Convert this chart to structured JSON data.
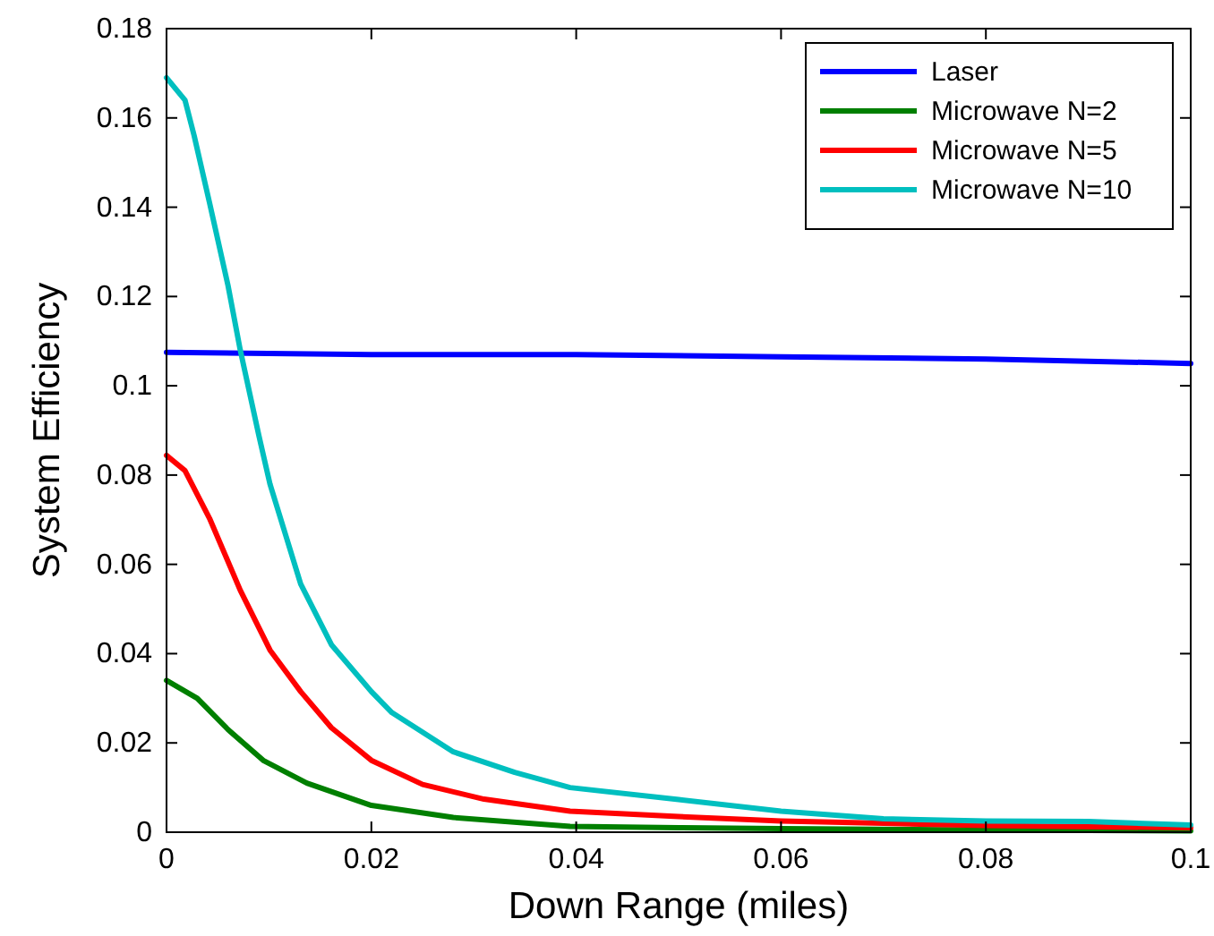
{
  "chart_data": {
    "type": "line",
    "xlabel": "Down Range (miles)",
    "ylabel": "System Efficiency",
    "xlim": [
      0,
      0.1
    ],
    "ylim": [
      0,
      0.18
    ],
    "xticks": [
      0,
      0.02,
      0.04,
      0.06,
      0.08,
      0.1
    ],
    "yticks": [
      0,
      0.02,
      0.04,
      0.06,
      0.08,
      0.1,
      0.12,
      0.14,
      0.16,
      0.18
    ],
    "grid": false,
    "legend": "top right",
    "marker": "none",
    "line_style": "solid",
    "series": [
      {
        "name": "Laser",
        "color": "#0000ff",
        "x": [
          0,
          0.02,
          0.04,
          0.06,
          0.08,
          0.1
        ],
        "values": [
          0.1075,
          0.107,
          0.107,
          0.1065,
          0.106,
          0.105
        ]
      },
      {
        "name": "Microwave N=2",
        "color": "#007f00",
        "x": [
          0,
          0.003,
          0.006,
          0.0095,
          0.0137,
          0.02,
          0.028,
          0.0394,
          0.05,
          0.06,
          0.08,
          0.1
        ],
        "values": [
          0.034,
          0.03,
          0.023,
          0.016,
          0.011,
          0.006,
          0.0033,
          0.0013,
          0.001,
          0.0008,
          0.0005,
          0.0003
        ]
      },
      {
        "name": "Microwave N=5",
        "color": "#ff0000",
        "x": [
          0,
          0.0018,
          0.0042,
          0.0072,
          0.0101,
          0.0131,
          0.0161,
          0.02,
          0.025,
          0.031,
          0.0394,
          0.05,
          0.06,
          0.07,
          0.08,
          0.1
        ],
        "values": [
          0.0844,
          0.081,
          0.0703,
          0.0542,
          0.0408,
          0.0315,
          0.0234,
          0.0161,
          0.0107,
          0.0074,
          0.0047,
          0.0035,
          0.0025,
          0.002,
          0.0015,
          0.001
        ]
      },
      {
        "name": "Microwave N=10",
        "color": "#00bfbf",
        "x": [
          0,
          0.0018,
          0.0027,
          0.0042,
          0.006,
          0.0072,
          0.009,
          0.0101,
          0.0131,
          0.0161,
          0.02,
          0.022,
          0.028,
          0.034,
          0.0394,
          0.05,
          0.06,
          0.07,
          0.08,
          0.09,
          0.1
        ],
        "values": [
          0.169,
          0.164,
          0.156,
          0.141,
          0.1225,
          0.108,
          0.089,
          0.078,
          0.0556,
          0.042,
          0.0315,
          0.0268,
          0.018,
          0.0134,
          0.01,
          0.0073,
          0.0047,
          0.003,
          0.0025,
          0.0024,
          0.0016
        ]
      }
    ]
  }
}
